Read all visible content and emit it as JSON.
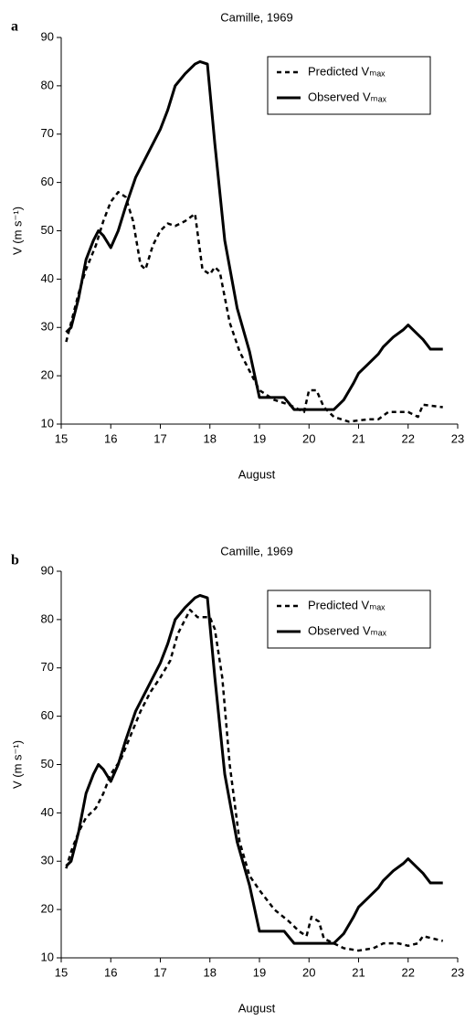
{
  "chart_data": [
    {
      "type": "line",
      "panel": "a",
      "title": "Camille, 1969",
      "x_label": "August",
      "y_label": "V (m s⁻¹)",
      "xlim": [
        15,
        23
      ],
      "xticks": [
        15,
        16,
        17,
        18,
        19,
        20,
        21,
        22,
        23
      ],
      "ylim": [
        10,
        90
      ],
      "yticks": [
        10,
        20,
        30,
        40,
        50,
        60,
        70,
        80,
        90
      ],
      "legend": "upper right",
      "series": [
        {
          "name": "Predicted Vₘₐₓ",
          "color": "#000000",
          "dash": true,
          "x": [
            15.1,
            15.2,
            15.35,
            15.5,
            15.7,
            15.85,
            16.0,
            16.15,
            16.3,
            16.45,
            16.6,
            16.7,
            16.85,
            17.0,
            17.15,
            17.3,
            17.5,
            17.7,
            17.85,
            18.0,
            18.1,
            18.2,
            18.4,
            18.6,
            18.8,
            19.0,
            19.3,
            19.6,
            19.9,
            20.0,
            20.15,
            20.3,
            20.5,
            20.8,
            21.2,
            21.4,
            21.6,
            22.0,
            22.2,
            22.3,
            22.7
          ],
          "values": [
            27,
            31,
            37,
            42,
            47,
            52,
            56,
            58,
            57,
            52,
            43,
            42,
            47,
            50,
            51.5,
            51,
            52,
            53.5,
            42,
            41,
            42.5,
            41.5,
            31,
            25,
            21,
            17,
            15,
            14,
            12.5,
            17,
            17,
            13.5,
            11.5,
            10.5,
            11,
            11,
            12.5,
            12.5,
            11.5,
            14,
            13.5
          ]
        },
        {
          "name": "Observed Vₘₐₓ",
          "color": "#000000",
          "dash": false,
          "x": [
            15.1,
            15.2,
            15.35,
            15.5,
            15.65,
            15.75,
            15.85,
            16.0,
            16.15,
            16.3,
            16.5,
            16.65,
            16.8,
            17.0,
            17.15,
            17.3,
            17.5,
            17.7,
            17.8,
            17.95,
            18.1,
            18.3,
            18.55,
            18.8,
            19.0,
            19.5,
            19.7,
            20.0,
            20.5,
            20.7,
            20.9,
            21.0,
            21.2,
            21.4,
            21.5,
            21.7,
            21.9,
            22.0,
            22.2,
            22.3,
            22.45,
            22.7
          ],
          "values": [
            29,
            30,
            36,
            44,
            48,
            50,
            49,
            46.5,
            50,
            55,
            61,
            64,
            67,
            71,
            75,
            80,
            82.5,
            84.5,
            85,
            84.5,
            68,
            48,
            34,
            25,
            15.5,
            15.5,
            13,
            13,
            13,
            15,
            18.5,
            20.5,
            22.5,
            24.5,
            26,
            28,
            29.5,
            30.5,
            28.5,
            27.5,
            25.5,
            25.5
          ]
        }
      ]
    },
    {
      "type": "line",
      "panel": "b",
      "title": "Camille, 1969",
      "x_label": "August",
      "y_label": "V (m s⁻¹)",
      "xlim": [
        15,
        23
      ],
      "xticks": [
        15,
        16,
        17,
        18,
        19,
        20,
        21,
        22,
        23
      ],
      "ylim": [
        10,
        90
      ],
      "yticks": [
        10,
        20,
        30,
        40,
        50,
        60,
        70,
        80,
        90
      ],
      "legend": "upper right",
      "series": [
        {
          "name": "Predicted Vₘₐₓ",
          "color": "#000000",
          "dash": true,
          "x": [
            15.1,
            15.2,
            15.35,
            15.5,
            15.7,
            15.85,
            16.0,
            16.2,
            16.4,
            16.6,
            16.8,
            17.0,
            17.2,
            17.35,
            17.5,
            17.6,
            17.75,
            18.0,
            18.1,
            18.25,
            18.4,
            18.6,
            18.8,
            19.0,
            19.3,
            19.6,
            19.8,
            19.95,
            20.05,
            20.2,
            20.3,
            20.5,
            20.7,
            21.0,
            21.3,
            21.5,
            21.8,
            22.0,
            22.2,
            22.3,
            22.7
          ],
          "values": [
            28.5,
            32,
            36,
            39,
            41,
            44,
            48,
            51,
            56,
            61,
            65,
            68,
            71.5,
            77,
            80,
            82,
            80.5,
            80.5,
            78,
            68,
            50,
            34,
            27,
            24,
            20,
            17.5,
            15.5,
            14.5,
            18.5,
            17.5,
            14,
            13,
            12,
            11.5,
            12,
            13,
            13,
            12.5,
            13,
            14.5,
            13.5
          ]
        },
        {
          "name": "Observed Vₘₐₓ",
          "color": "#000000",
          "dash": false,
          "x": [
            15.1,
            15.2,
            15.35,
            15.5,
            15.65,
            15.75,
            15.85,
            16.0,
            16.15,
            16.3,
            16.5,
            16.65,
            16.8,
            17.0,
            17.15,
            17.3,
            17.5,
            17.7,
            17.8,
            17.95,
            18.1,
            18.3,
            18.55,
            18.8,
            19.0,
            19.5,
            19.7,
            20.0,
            20.5,
            20.7,
            20.9,
            21.0,
            21.2,
            21.4,
            21.5,
            21.7,
            21.9,
            22.0,
            22.2,
            22.3,
            22.45,
            22.7
          ],
          "values": [
            29,
            30,
            36,
            44,
            48,
            50,
            49,
            46.5,
            50,
            55,
            61,
            64,
            67,
            71,
            75,
            80,
            82.5,
            84.5,
            85,
            84.5,
            68,
            48,
            34,
            25,
            15.5,
            15.5,
            13,
            13,
            13,
            15,
            18.5,
            20.5,
            22.5,
            24.5,
            26,
            28,
            29.5,
            30.5,
            28.5,
            27.5,
            25.5,
            25.5
          ]
        }
      ]
    }
  ]
}
